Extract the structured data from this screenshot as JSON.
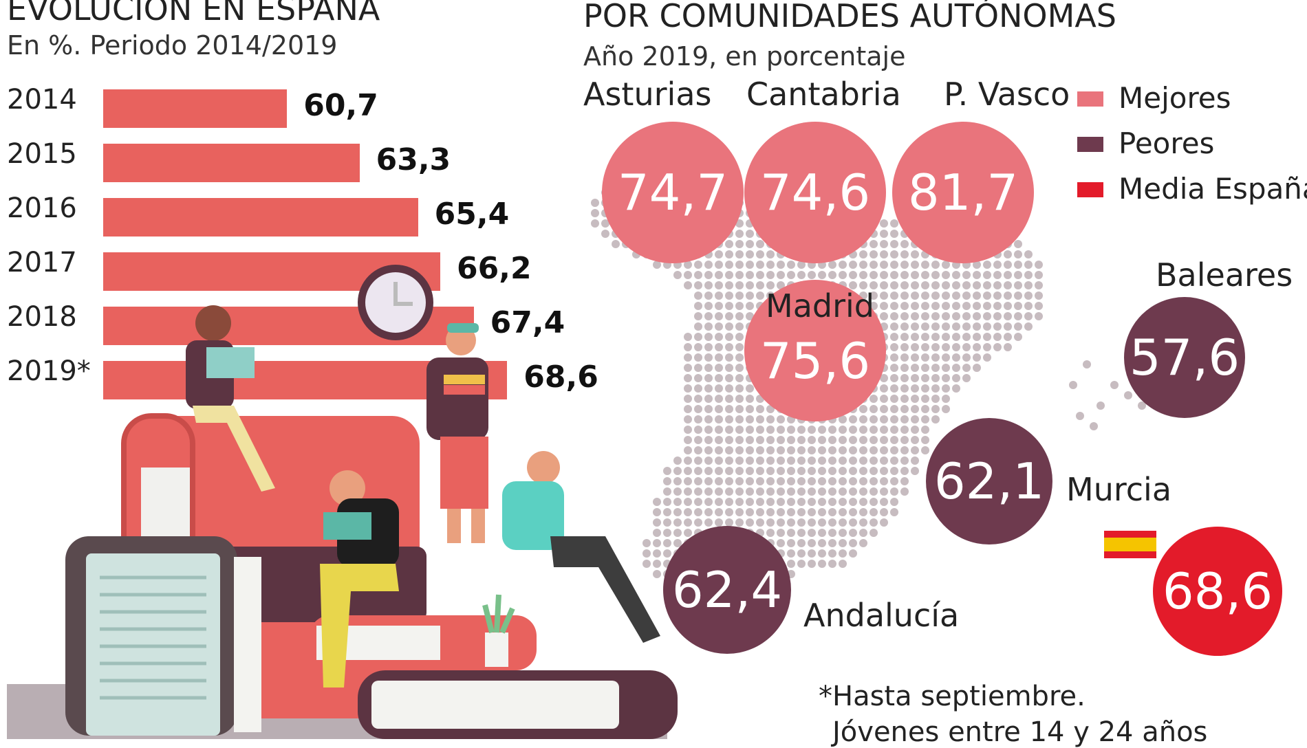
{
  "left": {
    "title": "EVOLUCIÓN EN ESPAÑA",
    "subtitle": "En %. Periodo 2014/2019"
  },
  "right": {
    "title": "POR COMUNIDADES AUTÓNOMAS",
    "subtitle": "Año 2019, en porcentaje"
  },
  "legend": {
    "items": [
      {
        "label": "Mejores",
        "color": "#e9747c"
      },
      {
        "label": "Peores",
        "color": "#6e3a4e"
      },
      {
        "label": "Media España",
        "color": "#e31b2a"
      }
    ]
  },
  "footnote": {
    "line1": "*Hasta septiembre.",
    "line2": "Jóvenes entre 14 y 24 años"
  },
  "colors": {
    "bar": "#e8625e",
    "mejores": "#e9747c",
    "peores": "#6e3a4e",
    "media": "#e31b2a",
    "map_dots": "#c7bcc0"
  },
  "icons": [
    "clock-icon",
    "spain-flag-icon",
    "spain-dot-map",
    "reading-people-illustration"
  ],
  "chart_data": [
    {
      "type": "bar",
      "orientation": "horizontal",
      "title": "EVOLUCIÓN EN ESPAÑA",
      "subtitle": "En %. Periodo 2014/2019",
      "categories": [
        "2014",
        "2015",
        "2016",
        "2017",
        "2018",
        "2019*"
      ],
      "values": [
        60.7,
        63.3,
        65.4,
        66.2,
        67.4,
        68.6
      ],
      "value_labels": [
        "60,7",
        "63,3",
        "65,4",
        "66,2",
        "67,4",
        "68,6"
      ]
    },
    {
      "type": "bubble-map",
      "title": "POR COMUNIDADES AUTÓNOMAS",
      "subtitle": "Año 2019, en porcentaje",
      "regions": [
        {
          "name": "Asturias",
          "value": 74.7,
          "label": "74,7",
          "group": "Mejores"
        },
        {
          "name": "Cantabria",
          "value": 74.6,
          "label": "74,6",
          "group": "Mejores"
        },
        {
          "name": "P. Vasco",
          "value": 81.7,
          "label": "81,7",
          "group": "Mejores"
        },
        {
          "name": "Madrid",
          "value": 75.6,
          "label": "75,6",
          "group": "Mejores"
        },
        {
          "name": "Baleares",
          "value": 57.6,
          "label": "57,6",
          "group": "Peores"
        },
        {
          "name": "Murcia",
          "value": 62.1,
          "label": "62,1",
          "group": "Peores"
        },
        {
          "name": "Andalucía",
          "value": 62.4,
          "label": "62,4",
          "group": "Peores"
        },
        {
          "name": "",
          "value": 68.6,
          "label": "68,6",
          "group": "Media España"
        }
      ],
      "legend": [
        "Mejores",
        "Peores",
        "Media España"
      ]
    }
  ]
}
